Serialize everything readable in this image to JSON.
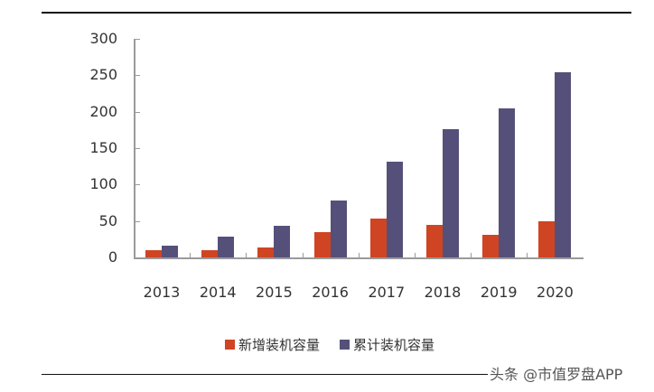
{
  "chart_data": {
    "type": "bar",
    "title": "",
    "xlabel": "",
    "ylabel": "",
    "ylim": [
      0,
      300
    ],
    "yticks": [
      0,
      50,
      100,
      150,
      200,
      250,
      300
    ],
    "categories": [
      "2013",
      "2014",
      "2015",
      "2016",
      "2017",
      "2018",
      "2019",
      "2020"
    ],
    "series": [
      {
        "name": "新增装机容量",
        "color": "#cf4423",
        "values": [
          10,
          10,
          14,
          35,
          53,
          45,
          31,
          49
        ]
      },
      {
        "name": "累计装机容量",
        "color": "#55507a",
        "values": [
          16,
          28,
          43,
          78,
          131,
          176,
          204,
          254
        ]
      }
    ],
    "grid": false,
    "legend_position": "bottom"
  },
  "watermark": "头条 @市值罗盘APP"
}
